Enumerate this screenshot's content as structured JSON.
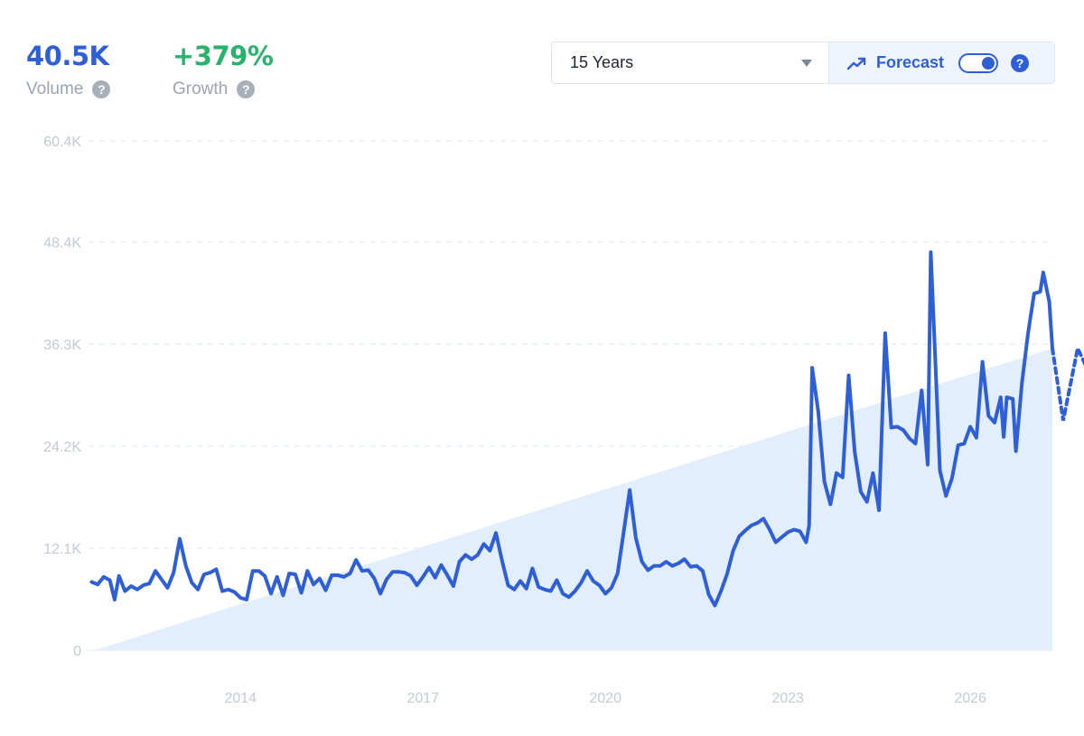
{
  "stats": {
    "volume": {
      "value": "40.5K",
      "label": "Volume",
      "color": "#2f5fd6"
    },
    "growth": {
      "value": "+379%",
      "label": "Growth",
      "color": "#27b36b"
    },
    "help_glyph": "?"
  },
  "controls": {
    "range_selected": "15 Years",
    "forecast_label": "Forecast",
    "forecast_enabled": true,
    "help_glyph": "?"
  },
  "chart_data": {
    "type": "line",
    "title": "",
    "xlabel": "",
    "ylabel": "",
    "y_ticks": [
      {
        "value": 0,
        "label": "0"
      },
      {
        "value": 12100,
        "label": "12.1K"
      },
      {
        "value": 24200,
        "label": "24.2K"
      },
      {
        "value": 36300,
        "label": "36.3K"
      },
      {
        "value": 48400,
        "label": "48.4K"
      },
      {
        "value": 60400,
        "label": "60.4K"
      }
    ],
    "x_ticks": [
      {
        "value": 2014,
        "label": "2014"
      },
      {
        "value": 2017,
        "label": "2017"
      },
      {
        "value": 2020,
        "label": "2020"
      },
      {
        "value": 2023,
        "label": "2023"
      },
      {
        "value": 2026,
        "label": "2026"
      }
    ],
    "xlim": [
      2011.5,
      2027.35
    ],
    "ylim": [
      0,
      60400
    ],
    "grid": "horizontal-dashed",
    "colors": {
      "line": "#2f5fd6",
      "trend_fill": "#e3eefc",
      "grid": "#dfe5ee"
    },
    "trend_area": [
      [
        2011.6,
        0
      ],
      [
        2027.35,
        35800
      ]
    ],
    "series": [
      {
        "points": [
          [
            2011.55,
            8100
          ],
          [
            2011.65,
            7800
          ],
          [
            2011.75,
            8700
          ],
          [
            2011.85,
            8300
          ],
          [
            2011.93,
            6000
          ],
          [
            2012.0,
            8800
          ],
          [
            2012.1,
            7000
          ],
          [
            2012.2,
            7600
          ],
          [
            2012.3,
            7200
          ],
          [
            2012.4,
            7700
          ],
          [
            2012.5,
            7900
          ],
          [
            2012.6,
            9400
          ],
          [
            2012.7,
            8400
          ],
          [
            2012.8,
            7400
          ],
          [
            2012.9,
            9200
          ],
          [
            2013.0,
            13200
          ],
          [
            2013.1,
            10000
          ],
          [
            2013.2,
            8000
          ],
          [
            2013.3,
            7200
          ],
          [
            2013.4,
            9000
          ],
          [
            2013.5,
            9200
          ],
          [
            2013.6,
            9600
          ],
          [
            2013.7,
            7000
          ],
          [
            2013.8,
            7200
          ],
          [
            2013.9,
            6900
          ],
          [
            2014.0,
            6200
          ],
          [
            2014.1,
            6000
          ],
          [
            2014.2,
            9400
          ],
          [
            2014.3,
            9400
          ],
          [
            2014.4,
            8800
          ],
          [
            2014.5,
            6700
          ],
          [
            2014.6,
            8700
          ],
          [
            2014.7,
            6500
          ],
          [
            2014.8,
            9100
          ],
          [
            2014.9,
            9000
          ],
          [
            2015.0,
            6800
          ],
          [
            2015.1,
            9400
          ],
          [
            2015.2,
            7800
          ],
          [
            2015.3,
            8500
          ],
          [
            2015.4,
            7100
          ],
          [
            2015.5,
            8900
          ],
          [
            2015.6,
            8900
          ],
          [
            2015.7,
            8700
          ],
          [
            2015.8,
            9100
          ],
          [
            2015.9,
            10700
          ],
          [
            2016.0,
            9400
          ],
          [
            2016.1,
            9500
          ],
          [
            2016.2,
            8500
          ],
          [
            2016.3,
            6700
          ],
          [
            2016.4,
            8400
          ],
          [
            2016.5,
            9300
          ],
          [
            2016.6,
            9300
          ],
          [
            2016.7,
            9200
          ],
          [
            2016.8,
            8800
          ],
          [
            2016.9,
            7700
          ],
          [
            2017.0,
            8700
          ],
          [
            2017.1,
            9800
          ],
          [
            2017.2,
            8600
          ],
          [
            2017.3,
            10100
          ],
          [
            2017.4,
            8900
          ],
          [
            2017.5,
            7600
          ],
          [
            2017.6,
            10500
          ],
          [
            2017.7,
            11300
          ],
          [
            2017.8,
            10800
          ],
          [
            2017.9,
            11300
          ],
          [
            2018.0,
            12600
          ],
          [
            2018.1,
            11800
          ],
          [
            2018.2,
            13900
          ],
          [
            2018.3,
            10600
          ],
          [
            2018.4,
            7700
          ],
          [
            2018.5,
            7200
          ],
          [
            2018.6,
            8200
          ],
          [
            2018.7,
            7300
          ],
          [
            2018.8,
            9700
          ],
          [
            2018.9,
            7500
          ],
          [
            2019.0,
            7200
          ],
          [
            2019.1,
            7000
          ],
          [
            2019.2,
            8300
          ],
          [
            2019.3,
            6700
          ],
          [
            2019.4,
            6300
          ],
          [
            2019.5,
            7000
          ],
          [
            2019.6,
            8000
          ],
          [
            2019.7,
            9400
          ],
          [
            2019.8,
            8200
          ],
          [
            2019.9,
            7700
          ],
          [
            2020.0,
            6700
          ],
          [
            2020.1,
            7400
          ],
          [
            2020.2,
            9100
          ],
          [
            2020.3,
            14000
          ],
          [
            2020.4,
            19000
          ],
          [
            2020.5,
            13300
          ],
          [
            2020.6,
            10500
          ],
          [
            2020.7,
            9500
          ],
          [
            2020.8,
            10000
          ],
          [
            2020.9,
            10000
          ],
          [
            2021.0,
            10500
          ],
          [
            2021.1,
            10000
          ],
          [
            2021.2,
            10300
          ],
          [
            2021.3,
            10800
          ],
          [
            2021.4,
            9900
          ],
          [
            2021.5,
            10000
          ],
          [
            2021.6,
            9400
          ],
          [
            2021.7,
            6600
          ],
          [
            2021.8,
            5300
          ],
          [
            2021.9,
            7000
          ],
          [
            2022.0,
            9000
          ],
          [
            2022.1,
            11800
          ],
          [
            2022.2,
            13500
          ],
          [
            2022.3,
            14200
          ],
          [
            2022.4,
            14800
          ],
          [
            2022.5,
            15100
          ],
          [
            2022.6,
            15600
          ],
          [
            2022.7,
            14300
          ],
          [
            2022.8,
            12800
          ],
          [
            2022.9,
            13400
          ],
          [
            2023.0,
            14000
          ],
          [
            2023.1,
            14300
          ],
          [
            2023.2,
            14100
          ],
          [
            2023.3,
            12800
          ],
          [
            2023.35,
            14800
          ],
          [
            2023.4,
            33500
          ],
          [
            2023.5,
            28300
          ],
          [
            2023.6,
            20000
          ],
          [
            2023.7,
            17300
          ],
          [
            2023.8,
            21000
          ],
          [
            2023.9,
            20500
          ],
          [
            2024.0,
            32600
          ],
          [
            2024.1,
            23500
          ],
          [
            2024.2,
            18800
          ],
          [
            2024.3,
            17600
          ],
          [
            2024.4,
            21000
          ],
          [
            2024.5,
            16600
          ],
          [
            2024.6,
            37600
          ],
          [
            2024.7,
            26400
          ],
          [
            2024.8,
            26500
          ],
          [
            2024.9,
            26100
          ],
          [
            2025.0,
            25100
          ],
          [
            2025.1,
            24500
          ],
          [
            2025.2,
            30800
          ],
          [
            2025.3,
            22000
          ],
          [
            2025.35,
            47200
          ],
          [
            2025.5,
            21300
          ],
          [
            2025.6,
            18300
          ],
          [
            2025.7,
            20400
          ],
          [
            2025.8,
            24300
          ],
          [
            2025.9,
            24500
          ],
          [
            2026.0,
            26500
          ],
          [
            2026.1,
            25200
          ],
          [
            2026.2,
            34200
          ],
          [
            2026.3,
            27800
          ],
          [
            2026.4,
            27000
          ],
          [
            2026.5,
            30000
          ],
          [
            2026.55,
            25300
          ],
          [
            2026.6,
            30000
          ],
          [
            2026.7,
            29800
          ],
          [
            2026.75,
            23600
          ],
          [
            2026.85,
            31700
          ],
          [
            2026.95,
            37600
          ],
          [
            2027.05,
            42300
          ],
          [
            2027.15,
            42500
          ],
          [
            2027.2,
            44800
          ],
          [
            2027.3,
            41300
          ],
          [
            2027.35,
            35800
          ]
        ]
      }
    ]
  }
}
